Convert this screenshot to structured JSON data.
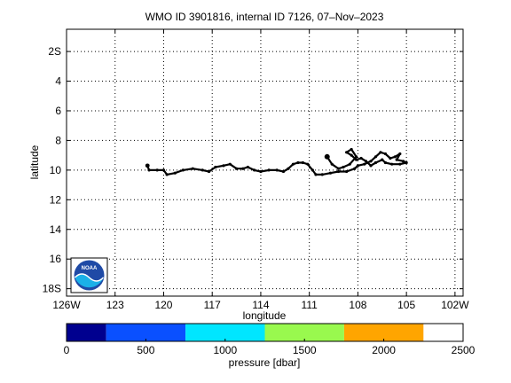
{
  "chart_data": {
    "type": "line",
    "title": "WMO ID 3901816, internal ID 7126, 07–Nov–2023",
    "xlabel": "longitude",
    "ylabel": "latitude",
    "xlim": [
      -126,
      -101.5
    ],
    "ylim": [
      -18.5,
      -0.5
    ],
    "x_ticks": [
      -126,
      -123,
      -120,
      -117,
      -114,
      -111,
      -108,
      -105,
      -102
    ],
    "x_tick_labels": [
      "126W",
      "123",
      "120",
      "117",
      "114",
      "111",
      "108",
      "105",
      "102W"
    ],
    "y_ticks": [
      -2,
      -4,
      -6,
      -8,
      -10,
      -12,
      -14,
      -16,
      -18
    ],
    "y_tick_labels": [
      "2S",
      "4",
      "6",
      "8",
      "10",
      "12",
      "14",
      "16",
      "18S"
    ],
    "grid": true,
    "series": [
      {
        "color": "#000000",
        "x": [
          -121.0,
          -120.9,
          -120.4,
          -120.0,
          -119.8,
          -119.3,
          -118.8,
          -118.2,
          -117.6,
          -117.2,
          -116.8,
          -116.3,
          -115.9,
          -115.5,
          -115.1,
          -114.8,
          -114.4,
          -114.0,
          -113.5,
          -113.0,
          -112.6,
          -112.3,
          -112.0,
          -111.7,
          -111.4,
          -111.1,
          -110.8,
          -110.6,
          -110.2,
          -109.7,
          -109.2,
          -108.7,
          -108.2,
          -108.0,
          -107.6,
          -107.2,
          -106.9,
          -106.6,
          -106.3,
          -106.0,
          -105.7,
          -105.4,
          -105.6,
          -105.2,
          -105.0,
          -105.4,
          -105.9,
          -106.3,
          -106.5,
          -106.9,
          -107.2,
          -107.5,
          -107.8,
          -108.1,
          -108.4,
          -108.7,
          -108.4,
          -108.1,
          -108.5,
          -108.9,
          -109.2,
          -109.6,
          -109.9
        ],
        "y": [
          -9.7,
          -10.0,
          -10.0,
          -10.0,
          -10.3,
          -10.2,
          -10.0,
          -9.9,
          -10.0,
          -10.1,
          -9.8,
          -9.7,
          -9.6,
          -9.9,
          -9.9,
          -9.8,
          -10.0,
          -10.1,
          -10.0,
          -10.0,
          -10.1,
          -9.9,
          -9.6,
          -9.5,
          -9.5,
          -9.6,
          -10.0,
          -10.3,
          -10.3,
          -10.2,
          -10.1,
          -10.1,
          -9.9,
          -9.7,
          -9.6,
          -9.4,
          -9.1,
          -8.8,
          -8.9,
          -9.2,
          -9.1,
          -8.9,
          -9.3,
          -9.4,
          -9.5,
          -9.6,
          -9.6,
          -9.5,
          -9.3,
          -9.5,
          -9.7,
          -9.4,
          -9.2,
          -9.3,
          -9.0,
          -8.8,
          -8.6,
          -9.1,
          -9.6,
          -9.8,
          -9.9,
          -9.6,
          -9.1
        ]
      }
    ],
    "colorbar": {
      "label": "pressure [dbar]",
      "ticks": [
        0,
        500,
        1000,
        1500,
        2000,
        2500
      ],
      "range": [
        0,
        2500
      ],
      "bins": [
        {
          "from": 0,
          "to": 250,
          "color": "#00008f"
        },
        {
          "from": 250,
          "to": 750,
          "color": "#0a50ff"
        },
        {
          "from": 750,
          "to": 1250,
          "color": "#00e6ff"
        },
        {
          "from": 1250,
          "to": 1750,
          "color": "#99f94e"
        },
        {
          "from": 1750,
          "to": 2250,
          "color": "#ffa500"
        }
      ]
    }
  },
  "logo": {
    "text": "NOAA",
    "colors": {
      "sky": "#1f4aa6",
      "sea": "#1ab0e8",
      "wave": "#ffffff"
    }
  }
}
